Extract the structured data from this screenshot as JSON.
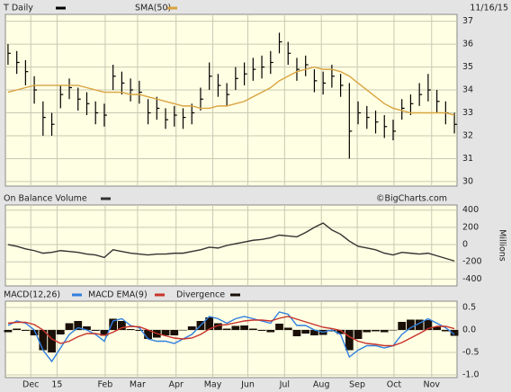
{
  "chart_data": [
    {
      "type": "ohlc",
      "date": "11/16/15",
      "x": [
        0,
        1,
        2,
        3,
        4,
        5,
        6,
        7,
        8,
        9,
        10,
        11,
        12,
        13,
        14,
        15,
        16,
        17,
        18,
        19,
        20,
        21,
        22,
        23,
        24,
        25,
        26,
        27,
        28,
        29,
        30,
        31,
        32,
        33,
        34,
        35,
        36,
        37,
        38,
        39,
        40,
        41,
        42,
        43,
        44,
        45,
        46,
        47,
        48,
        49,
        50,
        51
      ],
      "xlim": [
        -0.3,
        51.3
      ],
      "xticks": [
        {
          "value": 2.6,
          "label": "Dec"
        },
        {
          "value": 5.6,
          "label": "15"
        },
        {
          "value": 11.1,
          "label": "Feb"
        },
        {
          "value": 14.8,
          "label": "Mar"
        },
        {
          "value": 19.2,
          "label": "Apr"
        },
        {
          "value": 23.4,
          "label": "May"
        },
        {
          "value": 27.4,
          "label": "Jun"
        },
        {
          "value": 31.6,
          "label": "Jul"
        },
        {
          "value": 35.8,
          "label": "Aug"
        },
        {
          "value": 39.9,
          "label": "Sep"
        },
        {
          "value": 44.1,
          "label": "Oct"
        },
        {
          "value": 48.4,
          "label": "Nov"
        }
      ],
      "ylim": [
        29.8,
        37.3
      ],
      "yticks": [
        30,
        31,
        32,
        33,
        34,
        35,
        36,
        37
      ],
      "grid": true,
      "series": [
        {
          "name": "T Daily",
          "type": "ohlc",
          "color": "#000000",
          "high": [
            36.0,
            35.7,
            35.3,
            34.6,
            33.5,
            33.0,
            34.2,
            34.5,
            34.1,
            33.9,
            33.5,
            33.4,
            35.1,
            34.8,
            34.5,
            34.4,
            33.6,
            33.7,
            33.2,
            33.3,
            33.2,
            33.4,
            34.1,
            35.2,
            34.7,
            34.3,
            35.0,
            35.2,
            35.4,
            35.5,
            35.7,
            36.5,
            36.1,
            35.4,
            35.5,
            34.9,
            34.8,
            35.1,
            34.7,
            34.3,
            33.5,
            33.3,
            33.1,
            32.9,
            32.7,
            33.6,
            33.8,
            34.3,
            34.7,
            34.0,
            33.5,
            33.0
          ],
          "low": [
            35.1,
            34.7,
            34.2,
            33.4,
            32.0,
            32.0,
            33.2,
            33.6,
            33.1,
            32.9,
            32.5,
            32.4,
            34.0,
            33.8,
            33.5,
            33.4,
            32.5,
            32.7,
            32.3,
            32.4,
            32.3,
            32.5,
            33.1,
            34.0,
            33.7,
            33.3,
            34.0,
            34.2,
            34.4,
            34.5,
            34.7,
            35.6,
            35.1,
            34.4,
            34.6,
            33.9,
            33.8,
            34.1,
            33.7,
            31.0,
            32.5,
            32.3,
            32.1,
            31.9,
            31.8,
            32.7,
            32.9,
            33.3,
            33.5,
            33.0,
            32.5,
            32.1
          ],
          "values": [
            35.6,
            35.2,
            34.8,
            34.0,
            32.8,
            32.5,
            33.8,
            34.1,
            33.6,
            33.4,
            33.0,
            32.9,
            34.6,
            34.3,
            34.0,
            33.9,
            33.0,
            33.2,
            32.7,
            32.9,
            32.8,
            33.0,
            33.6,
            34.6,
            34.2,
            33.8,
            34.5,
            34.7,
            34.9,
            35.0,
            35.2,
            36.1,
            35.6,
            34.9,
            35.1,
            34.4,
            34.3,
            34.6,
            34.2,
            32.2,
            33.0,
            32.8,
            32.6,
            32.4,
            32.2,
            33.2,
            33.4,
            33.8,
            34.0,
            33.5,
            33.0,
            32.5
          ]
        },
        {
          "name": "SMA(50)",
          "type": "line",
          "color": "#d9a441",
          "values": [
            33.9,
            34.0,
            34.1,
            34.2,
            34.2,
            34.2,
            34.2,
            34.2,
            34.2,
            34.1,
            34.0,
            33.9,
            33.9,
            33.9,
            33.8,
            33.8,
            33.7,
            33.6,
            33.5,
            33.4,
            33.3,
            33.3,
            33.2,
            33.2,
            33.3,
            33.3,
            33.4,
            33.5,
            33.7,
            33.9,
            34.1,
            34.4,
            34.6,
            34.8,
            34.9,
            35.0,
            34.9,
            34.9,
            34.8,
            34.6,
            34.3,
            34.0,
            33.7,
            33.4,
            33.2,
            33.1,
            33.0,
            33.0,
            33.0,
            33.0,
            33.0,
            32.9
          ]
        }
      ]
    },
    {
      "type": "line",
      "y_label": "Millions",
      "annotation": "©BigCharts.com",
      "ylim": [
        -480,
        460
      ],
      "yticks": [
        -400,
        -200,
        0,
        200,
        400
      ],
      "grid": true,
      "series": [
        {
          "name": "On Balance Volume",
          "color": "#333333",
          "values": [
            0,
            -20,
            -50,
            -70,
            -100,
            -90,
            -70,
            -80,
            -90,
            -110,
            -120,
            -150,
            -60,
            -80,
            -100,
            -110,
            -120,
            -110,
            -110,
            -100,
            -100,
            -80,
            -60,
            -30,
            -40,
            -10,
            10,
            30,
            50,
            60,
            80,
            110,
            100,
            90,
            140,
            200,
            250,
            170,
            120,
            40,
            -20,
            -40,
            -60,
            -100,
            -120,
            -90,
            -100,
            -110,
            -100,
            -130,
            -160,
            -190
          ]
        }
      ]
    },
    {
      "type": "macd",
      "ylim": [
        -1.06,
        0.64
      ],
      "yticks": [
        0.5,
        {
          "value": 0,
          "label": "0.0"
        },
        -0.5,
        {
          "value": -1,
          "label": "-1.0"
        }
      ],
      "grid": true,
      "series": [
        {
          "name": "MACD(12,26)",
          "type": "line",
          "color": "#2f7fe0",
          "values": [
            0.1,
            0.2,
            0.15,
            0.0,
            -0.45,
            -0.7,
            -0.4,
            -0.1,
            0.05,
            0.0,
            -0.1,
            -0.25,
            0.2,
            0.25,
            0.1,
            0.05,
            -0.2,
            -0.25,
            -0.25,
            -0.3,
            -0.2,
            -0.1,
            0.1,
            0.3,
            0.25,
            0.15,
            0.25,
            0.3,
            0.25,
            0.2,
            0.15,
            0.4,
            0.35,
            0.1,
            0.1,
            0.0,
            -0.05,
            0.0,
            -0.1,
            -0.6,
            -0.45,
            -0.35,
            -0.35,
            -0.4,
            -0.35,
            -0.1,
            0.05,
            0.15,
            0.25,
            0.15,
            0.05,
            -0.1
          ]
        },
        {
          "name": "MACD EMA(9)",
          "type": "line",
          "color": "#c8322a",
          "values": [
            0.15,
            0.17,
            0.17,
            0.12,
            0.0,
            -0.2,
            -0.3,
            -0.25,
            -0.15,
            -0.08,
            -0.08,
            -0.12,
            -0.05,
            0.05,
            0.08,
            0.07,
            0.0,
            -0.08,
            -0.13,
            -0.18,
            -0.2,
            -0.18,
            -0.1,
            0.02,
            0.1,
            0.12,
            0.16,
            0.2,
            0.22,
            0.22,
            0.2,
            0.26,
            0.3,
            0.24,
            0.18,
            0.12,
            0.06,
            0.03,
            -0.01,
            -0.15,
            -0.25,
            -0.3,
            -0.32,
            -0.35,
            -0.35,
            -0.28,
            -0.18,
            -0.08,
            0.03,
            0.08,
            0.08,
            0.03
          ]
        },
        {
          "name": "Divergence",
          "type": "bar",
          "color": "#1a1008",
          "values": [
            -0.05,
            0.03,
            -0.02,
            -0.12,
            -0.45,
            -0.5,
            -0.1,
            0.15,
            0.2,
            0.08,
            -0.02,
            -0.13,
            0.25,
            0.2,
            0.02,
            -0.02,
            -0.2,
            -0.17,
            -0.12,
            -0.12,
            0.0,
            0.08,
            0.2,
            0.28,
            0.15,
            0.03,
            0.09,
            0.1,
            0.03,
            -0.02,
            -0.05,
            0.14,
            0.05,
            -0.14,
            -0.08,
            -0.12,
            -0.11,
            -0.03,
            -0.09,
            -0.45,
            -0.2,
            -0.05,
            -0.03,
            -0.05,
            0.0,
            0.18,
            0.23,
            0.23,
            0.22,
            0.07,
            -0.03,
            -0.13
          ]
        }
      ]
    }
  ]
}
